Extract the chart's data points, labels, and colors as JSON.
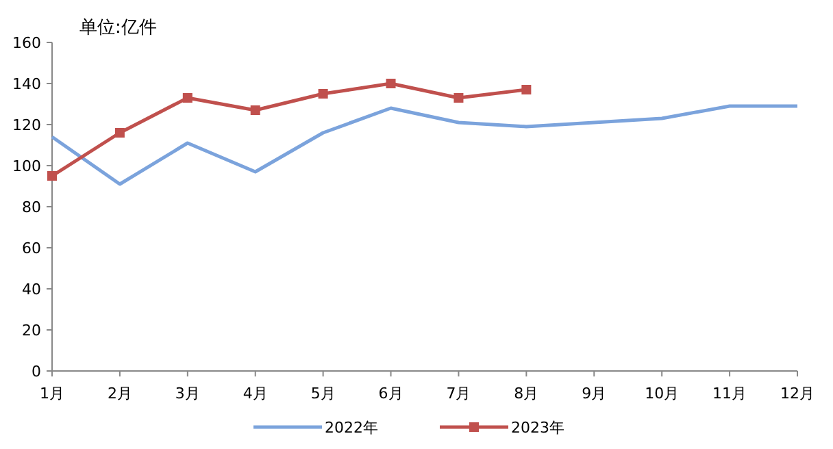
{
  "chart_data": {
    "type": "line",
    "annotations": [
      "单位:亿件"
    ],
    "categories": [
      "1月",
      "2月",
      "3月",
      "4月",
      "5月",
      "6月",
      "7月",
      "8月",
      "9月",
      "10月",
      "11月",
      "12月"
    ],
    "series": [
      {
        "name": "2022年",
        "color": "#7ba3dc",
        "values": [
          114,
          91,
          111,
          97,
          116,
          128,
          121,
          119,
          121,
          123,
          129,
          129
        ]
      },
      {
        "name": "2023年",
        "color": "#c0504d",
        "marker": "square",
        "values": [
          95,
          116,
          133,
          127,
          135,
          140,
          133,
          137,
          null,
          null,
          null,
          null
        ]
      }
    ],
    "ylim": [
      0,
      160
    ],
    "yticks": [
      0,
      20,
      40,
      60,
      80,
      100,
      120,
      140,
      160
    ],
    "legend": "bottom",
    "grid": false
  }
}
